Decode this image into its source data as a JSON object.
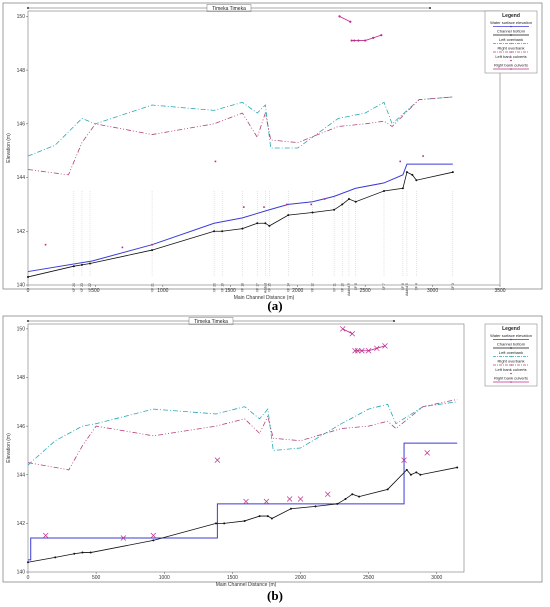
{
  "chart_data": [
    {
      "type": "line",
      "panel_label": "(a)",
      "title": "Timeka Timeka",
      "xlabel": "Main Channel Distance (m)",
      "ylabel": "Elevation (m)",
      "xlim": [
        0,
        3500
      ],
      "ylim": [
        140,
        150.2
      ],
      "xticks": [
        0,
        500,
        1000,
        1500,
        2000,
        2500,
        3000,
        3500
      ],
      "yticks": [
        140,
        142,
        144,
        146,
        148,
        150
      ],
      "tick_labels_x": [
        "0",
        "500",
        "1000",
        "1500",
        "2000",
        "2500",
        "3000",
        "3500"
      ],
      "tick_labels_y": [
        "140",
        "142",
        "144",
        "146",
        "148",
        "150"
      ],
      "grid": false,
      "legend": {
        "position": "top-right",
        "title": "Legend",
        "entries": [
          "Water surface elevation",
          "Channel bottom",
          "Left overbank",
          "Right overbank",
          "Left bank culverts",
          "Right bank culverts"
        ]
      },
      "section_labels": [
        {
          "x": 340,
          "label": "XF 24"
        },
        {
          "x": 400,
          "label": "XF 23"
        },
        {
          "x": 460,
          "label": "XF 22"
        },
        {
          "x": 920,
          "label": "XF 21"
        },
        {
          "x": 1380,
          "label": "XF 20"
        },
        {
          "x": 1440,
          "label": "XF 19"
        },
        {
          "x": 1590,
          "label": "XF 18"
        },
        {
          "x": 1700,
          "label": "XF 17"
        },
        {
          "x": 1760,
          "label": "Added"
        },
        {
          "x": 1790,
          "label": "XF 15"
        },
        {
          "x": 1930,
          "label": "XF 14"
        },
        {
          "x": 2110,
          "label": "XF 12"
        },
        {
          "x": 2270,
          "label": "XF 11"
        },
        {
          "x": 2330,
          "label": "XF 10"
        },
        {
          "x": 2380,
          "label": "Added 9"
        },
        {
          "x": 2430,
          "label": "XF 8"
        },
        {
          "x": 2640,
          "label": "XF 7"
        },
        {
          "x": 2780,
          "label": "XF 6"
        },
        {
          "x": 2810,
          "label": "Added 5"
        },
        {
          "x": 2880,
          "label": "XF 4"
        },
        {
          "x": 3150,
          "label": "XF 3"
        }
      ],
      "series": [
        {
          "name": "Water surface elevation",
          "color": "#3b3bd6",
          "x": [
            0,
            480,
            920,
            1380,
            1590,
            1790,
            1930,
            2110,
            2270,
            2430,
            2640,
            2780,
            2810,
            3150
          ],
          "y": [
            140.5,
            140.9,
            141.5,
            142.3,
            142.5,
            142.8,
            143.0,
            143.1,
            143.3,
            143.6,
            143.8,
            144.1,
            144.5,
            144.5
          ]
        },
        {
          "name": "Channel bottom",
          "color": "#111111",
          "x": [
            0,
            340,
            400,
            460,
            920,
            1380,
            1440,
            1590,
            1700,
            1760,
            1790,
            1930,
            2110,
            2270,
            2330,
            2380,
            2430,
            2640,
            2780,
            2810,
            2850,
            2880,
            3150
          ],
          "y": [
            140.3,
            140.7,
            140.75,
            140.8,
            141.3,
            142.0,
            142.0,
            142.1,
            142.3,
            142.3,
            142.2,
            142.6,
            142.7,
            142.8,
            143.0,
            143.2,
            143.1,
            143.5,
            143.6,
            144.2,
            144.1,
            143.9,
            144.2
          ]
        },
        {
          "name": "Left overbank",
          "color": "#28a8b8",
          "x": [
            0,
            200,
            400,
            500,
            920,
            1380,
            1590,
            1700,
            1760,
            1800,
            2000,
            2300,
            2500,
            2640,
            2700,
            2900,
            3150
          ],
          "y": [
            144.8,
            145.2,
            146.2,
            146.0,
            146.7,
            146.5,
            146.8,
            146.4,
            146.7,
            145.1,
            145.1,
            146.2,
            146.4,
            146.8,
            146.0,
            146.9,
            147.0
          ]
        },
        {
          "name": "Right overbank",
          "color": "#b0437a",
          "x": [
            0,
            300,
            400,
            500,
            920,
            1380,
            1590,
            1700,
            1760,
            1800,
            2000,
            2300,
            2500,
            2640,
            2700,
            2900,
            3150
          ],
          "y": [
            144.3,
            144.1,
            145.3,
            146.0,
            145.6,
            146.0,
            146.4,
            145.5,
            146.4,
            145.4,
            145.3,
            145.9,
            146.0,
            146.1,
            145.9,
            146.9,
            147.0
          ]
        },
        {
          "name": "Left bank culverts",
          "color": "#c0288c",
          "x": [
            130,
            700,
            920,
            1390,
            1600,
            1750,
            1920,
            2100,
            2200,
            2760,
            2930
          ],
          "y": [
            141.5,
            141.4,
            141.5,
            144.6,
            142.9,
            142.9,
            143.0,
            143.0,
            143.2,
            144.6,
            144.8
          ]
        },
        {
          "name": "Right bank culverts",
          "color": "#c0288c",
          "x": [
            2310,
            2390,
            2400,
            2420,
            2450,
            2500,
            2560,
            2620
          ],
          "y": [
            150.0,
            149.8,
            149.1,
            149.1,
            149.1,
            149.1,
            149.2,
            149.3
          ]
        }
      ]
    },
    {
      "type": "line",
      "panel_label": "(b)",
      "title": "Timeka Timeka",
      "xlabel": "Main Channel Distance (m)",
      "ylabel": "Elevation (m)",
      "xlim": [
        0,
        3200
      ],
      "ylim": [
        140,
        150.2
      ],
      "xticks": [
        0,
        500,
        1000,
        1500,
        2000,
        2500,
        3000
      ],
      "yticks": [
        140,
        142,
        144,
        146,
        148,
        150
      ],
      "tick_labels_x": [
        "0",
        "500",
        "1000",
        "1500",
        "2000",
        "2500",
        "3000"
      ],
      "tick_labels_y": [
        "140",
        "142",
        "144",
        "146",
        "148",
        "150"
      ],
      "grid": false,
      "legend": {
        "position": "top-right",
        "title": "Legend",
        "entries": [
          "Water surface elevation",
          "Channel bottom",
          "Left overbank",
          "Right overbank",
          "Left bank culverts",
          "Right bank culverts"
        ]
      },
      "series": [
        {
          "name": "Water surface elevation",
          "color": "#3b3bd6",
          "x": [
            0,
            20,
            20,
            920,
            1390,
            1390,
            2760,
            2760,
            3150
          ],
          "y": [
            140.5,
            140.5,
            141.4,
            141.4,
            141.4,
            142.8,
            142.8,
            145.3,
            145.3
          ]
        },
        {
          "name": "Channel bottom",
          "color": "#111111",
          "x": [
            0,
            200,
            340,
            400,
            460,
            920,
            1380,
            1440,
            1590,
            1700,
            1760,
            1790,
            1930,
            2110,
            2270,
            2330,
            2380,
            2430,
            2640,
            2780,
            2810,
            2850,
            2880,
            3150
          ],
          "y": [
            140.4,
            140.6,
            140.75,
            140.8,
            140.8,
            141.3,
            142.0,
            142.0,
            142.1,
            142.3,
            142.3,
            142.2,
            142.6,
            142.7,
            142.8,
            143.0,
            143.2,
            143.1,
            143.4,
            144.2,
            144.0,
            144.1,
            144.0,
            144.3
          ]
        },
        {
          "name": "Left overbank",
          "color": "#28a8b8",
          "x": [
            0,
            200,
            400,
            500,
            920,
            1380,
            1590,
            1700,
            1760,
            1800,
            2000,
            2300,
            2500,
            2640,
            2700,
            2900,
            3150
          ],
          "y": [
            144.4,
            145.4,
            146.0,
            146.1,
            146.7,
            146.5,
            146.8,
            146.3,
            146.7,
            145.0,
            145.1,
            146.1,
            146.7,
            146.9,
            146.1,
            146.8,
            147.0
          ]
        },
        {
          "name": "Right overbank",
          "color": "#b0437a",
          "x": [
            0,
            300,
            400,
            500,
            920,
            1380,
            1590,
            1700,
            1760,
            1800,
            2000,
            2300,
            2500,
            2640,
            2700,
            2900,
            3150
          ],
          "y": [
            144.5,
            144.2,
            145.2,
            146.0,
            145.6,
            146.0,
            146.3,
            145.7,
            146.4,
            145.5,
            145.4,
            145.9,
            146.0,
            146.2,
            145.9,
            146.8,
            147.1
          ]
        },
        {
          "name": "Left bank culverts",
          "color": "#c0288c",
          "x": [
            130,
            700,
            920,
            1390,
            1600,
            1750,
            1920,
            2000,
            2200,
            2760,
            2930
          ],
          "y": [
            141.5,
            141.4,
            141.5,
            144.6,
            142.9,
            142.9,
            143.0,
            143.0,
            143.2,
            144.6,
            144.9
          ]
        },
        {
          "name": "Right bank culverts",
          "color": "#c0288c",
          "x": [
            2310,
            2380,
            2400,
            2420,
            2450,
            2500,
            2560,
            2620
          ],
          "y": [
            150.0,
            149.8,
            149.1,
            149.1,
            149.1,
            149.1,
            149.2,
            149.3
          ]
        }
      ]
    }
  ]
}
